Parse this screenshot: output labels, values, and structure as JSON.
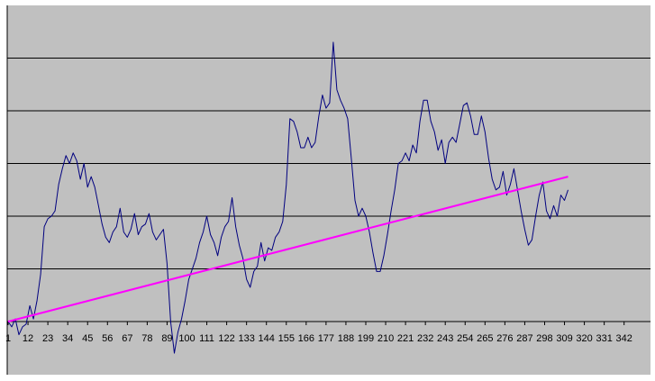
{
  "chart_data": {
    "type": "line",
    "title": "",
    "xlabel": "",
    "ylabel": "",
    "grid": true,
    "legend": "none",
    "plot_background": "#c0c0c0",
    "x_tick_labels": [
      "1",
      "12",
      "23",
      "34",
      "45",
      "56",
      "67",
      "78",
      "89",
      "100",
      "111",
      "122",
      "133",
      "144",
      "155",
      "166",
      "177",
      "188",
      "199",
      "210",
      "221",
      "232",
      "243",
      "254",
      "265",
      "276",
      "287",
      "298",
      "309",
      "320",
      "331",
      "342"
    ],
    "xlim": [
      1,
      350
    ],
    "ylim": [
      -1.2,
      6
    ],
    "gridlines_y": [
      1,
      2,
      3,
      4,
      5
    ],
    "series": [
      {
        "color": "#00007f",
        "points": [
          [
            1,
            0
          ],
          [
            3,
            -0.1
          ],
          [
            5,
            0.05
          ],
          [
            7,
            -0.25
          ],
          [
            9,
            -0.1
          ],
          [
            11,
            -0.05
          ],
          [
            13,
            0.3
          ],
          [
            15,
            0.05
          ],
          [
            17,
            0.4
          ],
          [
            19,
            0.9
          ],
          [
            21,
            1.8
          ],
          [
            23,
            1.95
          ],
          [
            25,
            2
          ],
          [
            27,
            2.1
          ],
          [
            29,
            2.6
          ],
          [
            31,
            2.9
          ],
          [
            33,
            3.15
          ],
          [
            35,
            3.0
          ],
          [
            37,
            3.2
          ],
          [
            39,
            3.05
          ],
          [
            41,
            2.7
          ],
          [
            43,
            3.0
          ],
          [
            45,
            2.55
          ],
          [
            47,
            2.75
          ],
          [
            49,
            2.55
          ],
          [
            51,
            2.2
          ],
          [
            53,
            1.85
          ],
          [
            55,
            1.6
          ],
          [
            57,
            1.5
          ],
          [
            59,
            1.7
          ],
          [
            61,
            1.8
          ],
          [
            63,
            2.15
          ],
          [
            65,
            1.7
          ],
          [
            67,
            1.6
          ],
          [
            69,
            1.75
          ],
          [
            71,
            2.05
          ],
          [
            73,
            1.65
          ],
          [
            75,
            1.8
          ],
          [
            77,
            1.85
          ],
          [
            79,
            2.05
          ],
          [
            81,
            1.7
          ],
          [
            83,
            1.55
          ],
          [
            85,
            1.65
          ],
          [
            87,
            1.75
          ],
          [
            89,
            1.1
          ],
          [
            91,
            0.0
          ],
          [
            93,
            -0.6
          ],
          [
            95,
            -0.2
          ],
          [
            97,
            0.05
          ],
          [
            99,
            0.4
          ],
          [
            101,
            0.8
          ],
          [
            103,
            1.0
          ],
          [
            105,
            1.2
          ],
          [
            107,
            1.5
          ],
          [
            109,
            1.7
          ],
          [
            111,
            2.0
          ],
          [
            113,
            1.65
          ],
          [
            115,
            1.5
          ],
          [
            117,
            1.25
          ],
          [
            119,
            1.6
          ],
          [
            121,
            1.8
          ],
          [
            123,
            1.9
          ],
          [
            125,
            2.35
          ],
          [
            127,
            1.8
          ],
          [
            129,
            1.45
          ],
          [
            131,
            1.2
          ],
          [
            133,
            0.8
          ],
          [
            135,
            0.65
          ],
          [
            137,
            0.95
          ],
          [
            139,
            1.05
          ],
          [
            141,
            1.5
          ],
          [
            143,
            1.15
          ],
          [
            145,
            1.4
          ],
          [
            147,
            1.35
          ],
          [
            149,
            1.6
          ],
          [
            151,
            1.7
          ],
          [
            153,
            1.9
          ],
          [
            155,
            2.6
          ],
          [
            157,
            3.85
          ],
          [
            159,
            3.8
          ],
          [
            161,
            3.6
          ],
          [
            163,
            3.3
          ],
          [
            165,
            3.3
          ],
          [
            167,
            3.5
          ],
          [
            169,
            3.3
          ],
          [
            171,
            3.4
          ],
          [
            173,
            3.9
          ],
          [
            175,
            4.3
          ],
          [
            177,
            4.05
          ],
          [
            179,
            4.15
          ],
          [
            181,
            5.3
          ],
          [
            183,
            4.4
          ],
          [
            185,
            4.2
          ],
          [
            187,
            4.05
          ],
          [
            189,
            3.85
          ],
          [
            191,
            3.1
          ],
          [
            193,
            2.3
          ],
          [
            195,
            2.0
          ],
          [
            197,
            2.15
          ],
          [
            199,
            2.0
          ],
          [
            201,
            1.7
          ],
          [
            203,
            1.3
          ],
          [
            205,
            0.95
          ],
          [
            207,
            0.95
          ],
          [
            209,
            1.25
          ],
          [
            211,
            1.65
          ],
          [
            213,
            2.1
          ],
          [
            215,
            2.5
          ],
          [
            217,
            3.0
          ],
          [
            219,
            3.05
          ],
          [
            221,
            3.2
          ],
          [
            223,
            3.05
          ],
          [
            225,
            3.35
          ],
          [
            227,
            3.2
          ],
          [
            229,
            3.8
          ],
          [
            231,
            4.2
          ],
          [
            233,
            4.2
          ],
          [
            235,
            3.8
          ],
          [
            237,
            3.6
          ],
          [
            239,
            3.25
          ],
          [
            241,
            3.45
          ],
          [
            243,
            3.0
          ],
          [
            245,
            3.4
          ],
          [
            247,
            3.5
          ],
          [
            249,
            3.4
          ],
          [
            251,
            3.75
          ],
          [
            253,
            4.1
          ],
          [
            255,
            4.15
          ],
          [
            257,
            3.9
          ],
          [
            259,
            3.55
          ],
          [
            261,
            3.55
          ],
          [
            263,
            3.9
          ],
          [
            265,
            3.6
          ],
          [
            267,
            3.1
          ],
          [
            269,
            2.7
          ],
          [
            271,
            2.5
          ],
          [
            273,
            2.55
          ],
          [
            275,
            2.85
          ],
          [
            277,
            2.4
          ],
          [
            279,
            2.6
          ],
          [
            281,
            2.9
          ],
          [
            283,
            2.5
          ],
          [
            285,
            2.1
          ],
          [
            287,
            1.75
          ],
          [
            289,
            1.45
          ],
          [
            291,
            1.55
          ],
          [
            293,
            2.0
          ],
          [
            295,
            2.4
          ],
          [
            297,
            2.65
          ],
          [
            299,
            2.1
          ],
          [
            301,
            1.95
          ],
          [
            303,
            2.2
          ],
          [
            305,
            2.0
          ],
          [
            307,
            2.4
          ],
          [
            309,
            2.3
          ],
          [
            311,
            2.5
          ]
        ]
      },
      {
        "color": "#ff00ff",
        "points": [
          [
            1,
            0
          ],
          [
            311,
            2.75
          ]
        ]
      }
    ]
  }
}
